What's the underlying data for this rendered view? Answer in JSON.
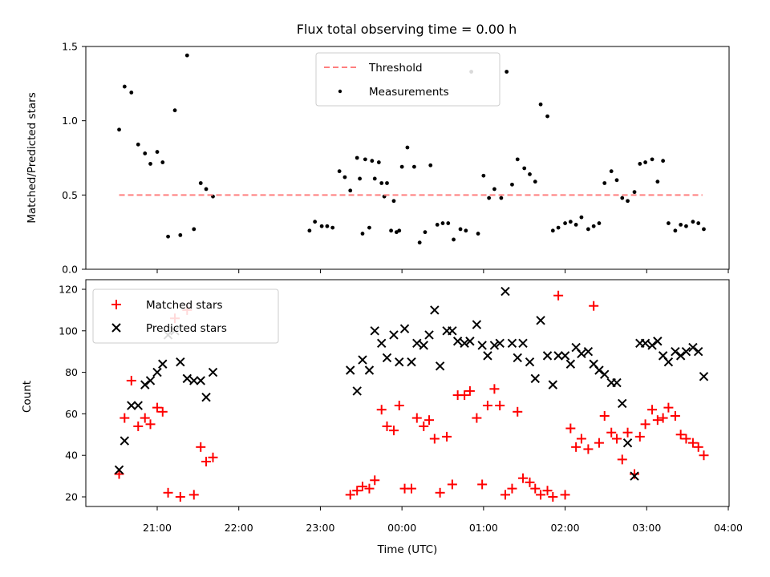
{
  "chart_data": [
    {
      "type": "scatter",
      "title": "Flux total observing time = 0.00 h",
      "xlabel": "",
      "ylabel": "Matched/Predicted stars",
      "ylim": [
        0,
        1.5
      ],
      "yticks": [
        "0.0",
        "0.5",
        "1.0",
        "1.5"
      ],
      "grid": false,
      "legend": "top-center",
      "threshold": {
        "name": "Threshold",
        "value": 0.5,
        "x_start": "20:32",
        "x_end": "03:41",
        "color": "#ff7f7f"
      },
      "series": [
        {
          "name": "Measurements",
          "color": "#000000",
          "x": [
            "20:32",
            "20:36",
            "20:41",
            "20:46",
            "20:51",
            "20:55",
            "21:00",
            "21:04",
            "21:08",
            "21:13",
            "21:17",
            "21:22",
            "21:27",
            "21:32",
            "21:36",
            "21:41",
            "22:52",
            "22:56",
            "23:01",
            "23:05",
            "23:09",
            "23:14",
            "23:18",
            "23:22",
            "23:27",
            "23:31",
            "23:36",
            "23:40",
            "23:45",
            "23:49",
            "23:54",
            "23:58",
            "23:47",
            "23:52",
            "23:43",
            "23:38",
            "23:33",
            "23:29",
            "23:56",
            "00:00",
            "00:04",
            "00:09",
            "00:13",
            "00:17",
            "00:21",
            "00:26",
            "00:30",
            "00:34",
            "00:38",
            "00:43",
            "00:47",
            "00:51",
            "00:56",
            "01:00",
            "01:04",
            "01:08",
            "01:13",
            "01:17",
            "01:21",
            "01:25",
            "01:30",
            "01:34",
            "01:38",
            "01:42",
            "01:47",
            "01:51",
            "01:55",
            "02:00",
            "02:04",
            "02:08",
            "02:12",
            "02:17",
            "02:21",
            "02:25",
            "02:29",
            "02:34",
            "02:38",
            "02:42",
            "02:46",
            "02:51",
            "02:55",
            "02:59",
            "03:04",
            "03:08",
            "03:12",
            "03:16",
            "03:21",
            "03:25",
            "03:29",
            "03:34",
            "03:38",
            "03:42"
          ],
          "y": [
            0.94,
            1.23,
            1.19,
            0.84,
            0.78,
            0.71,
            0.79,
            0.72,
            0.22,
            1.07,
            0.23,
            1.44,
            0.27,
            0.58,
            0.54,
            0.49,
            0.26,
            0.32,
            0.29,
            0.29,
            0.28,
            0.66,
            0.62,
            0.53,
            0.75,
            0.24,
            0.28,
            0.61,
            0.58,
            0.58,
            0.46,
            0.26,
            0.49,
            0.26,
            0.72,
            0.73,
            0.74,
            0.61,
            0.25,
            0.69,
            0.82,
            0.69,
            0.18,
            0.25,
            0.7,
            0.3,
            0.31,
            0.31,
            0.2,
            0.27,
            0.26,
            1.33,
            0.24,
            0.63,
            0.48,
            0.54,
            0.48,
            1.33,
            0.57,
            0.74,
            0.68,
            0.64,
            0.59,
            1.11,
            1.03,
            0.26,
            0.28,
            0.31,
            0.32,
            0.3,
            0.35,
            0.27,
            0.29,
            0.31,
            0.58,
            0.66,
            0.6,
            0.48,
            0.46,
            0.52,
            0.71,
            0.72,
            0.74,
            0.59,
            0.73,
            0.31,
            0.26,
            0.3,
            0.29,
            0.32,
            0.31,
            0.27
          ]
        }
      ]
    },
    {
      "type": "scatter",
      "title": "",
      "xlabel": "Time (UTC)",
      "ylabel": "Count",
      "ylim": [
        15,
        123
      ],
      "yticks": [
        "20",
        "40",
        "60",
        "80",
        "100",
        "120"
      ],
      "xticks": [
        "21:00",
        "22:00",
        "23:00",
        "00:00",
        "01:00",
        "02:00",
        "03:00",
        "04:00"
      ],
      "grid": false,
      "legend": "top-left",
      "series": [
        {
          "name": "Matched stars",
          "marker": "plus",
          "color": "#ff0000",
          "x": [
            "20:32",
            "20:36",
            "20:41",
            "20:46",
            "20:51",
            "20:55",
            "21:00",
            "21:04",
            "21:08",
            "21:13",
            "21:17",
            "21:22",
            "21:27",
            "21:32",
            "21:36",
            "21:41",
            "23:22",
            "23:27",
            "23:31",
            "23:36",
            "23:40",
            "23:45",
            "23:49",
            "23:54",
            "23:58",
            "00:02",
            "00:07",
            "00:11",
            "00:16",
            "00:20",
            "00:24",
            "00:28",
            "00:33",
            "00:37",
            "00:41",
            "00:46",
            "00:50",
            "00:55",
            "00:59",
            "01:03",
            "01:08",
            "01:12",
            "01:16",
            "01:21",
            "01:25",
            "01:29",
            "01:34",
            "01:38",
            "01:42",
            "01:47",
            "01:51",
            "01:55",
            "02:00",
            "02:04",
            "02:08",
            "02:12",
            "02:17",
            "02:21",
            "02:25",
            "02:29",
            "02:34",
            "02:38",
            "02:42",
            "02:46",
            "02:51",
            "02:55",
            "02:59",
            "03:04",
            "03:08",
            "03:12",
            "03:16",
            "03:21",
            "03:25",
            "03:29",
            "03:34",
            "03:38",
            "03:42"
          ],
          "y": [
            31,
            58,
            76,
            54,
            58,
            55,
            63,
            61,
            22,
            106,
            20,
            110,
            21,
            44,
            37,
            39,
            21,
            23,
            25,
            24,
            28,
            62,
            54,
            52,
            64,
            24,
            24,
            58,
            54,
            57,
            48,
            22,
            49,
            26,
            69,
            69,
            71,
            58,
            26,
            64,
            72,
            64,
            21,
            24,
            61,
            29,
            27,
            24,
            21,
            23,
            20,
            117,
            21,
            53,
            44,
            48,
            43,
            112,
            46,
            59,
            51,
            48,
            38,
            51,
            31,
            49,
            55,
            62,
            57,
            58,
            63,
            59,
            50,
            48,
            46,
            44,
            40
          ],
          "y_trim_note": ""
        },
        {
          "name": "Predicted stars",
          "marker": "x",
          "color": "#000000",
          "x": [
            "20:32",
            "20:36",
            "20:41",
            "20:46",
            "20:51",
            "20:55",
            "21:00",
            "21:04",
            "21:08",
            "21:13",
            "21:17",
            "21:22",
            "21:27",
            "21:32",
            "21:36",
            "21:41",
            "23:22",
            "23:27",
            "23:31",
            "23:36",
            "23:40",
            "23:45",
            "23:49",
            "23:54",
            "23:58",
            "00:02",
            "00:07",
            "00:11",
            "00:16",
            "00:20",
            "00:24",
            "00:28",
            "00:33",
            "00:37",
            "00:41",
            "00:46",
            "00:50",
            "00:55",
            "00:59",
            "01:03",
            "01:08",
            "01:12",
            "01:16",
            "01:21",
            "01:25",
            "01:29",
            "01:34",
            "01:38",
            "01:42",
            "01:47",
            "01:51",
            "01:55",
            "02:00",
            "02:04",
            "02:08",
            "02:12",
            "02:17",
            "02:21",
            "02:25",
            "02:29",
            "02:34",
            "02:38",
            "02:42",
            "02:46",
            "02:51",
            "02:55",
            "02:59",
            "03:04",
            "03:08",
            "03:12",
            "03:16",
            "03:21",
            "03:25",
            "03:29",
            "03:34",
            "03:38",
            "03:42"
          ],
          "y": [
            33,
            47,
            64,
            64,
            74,
            76,
            80,
            84,
            98,
            100,
            85,
            77,
            76,
            76,
            68,
            80,
            81,
            71,
            86,
            81,
            100,
            94,
            87,
            98,
            85,
            101,
            85,
            94,
            93,
            98,
            110,
            83,
            100,
            100,
            95,
            94,
            95,
            103,
            93,
            88,
            93,
            94,
            119,
            94,
            87,
            94,
            85,
            77,
            105,
            88,
            74,
            88,
            88,
            84,
            92,
            89,
            90,
            84,
            81,
            79,
            75,
            75,
            65,
            46,
            30,
            94,
            94,
            93,
            95,
            88,
            85,
            90,
            88,
            90,
            92,
            90,
            78
          ]
        }
      ]
    }
  ]
}
